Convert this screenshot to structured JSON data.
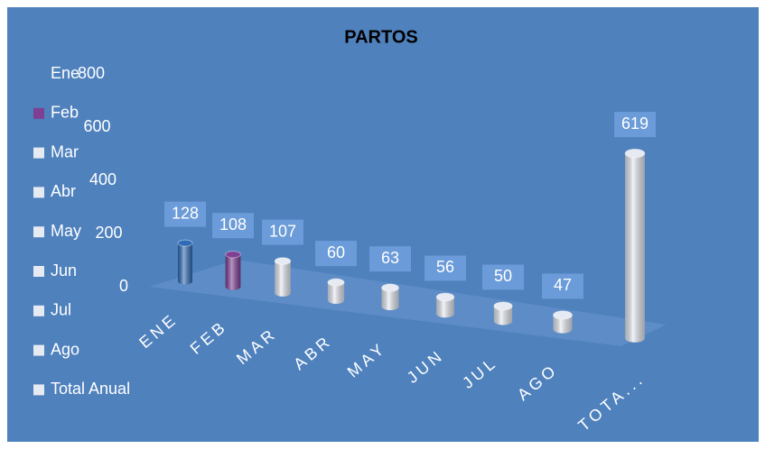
{
  "chart_data": {
    "type": "bar",
    "title": "PARTOS",
    "categories": [
      "ENE",
      "FEB",
      "MAR",
      "ABR",
      "MAY",
      "JUN",
      "JUL",
      "AGO",
      "TOTA..."
    ],
    "values": [
      128,
      108,
      107,
      60,
      63,
      56,
      50,
      47,
      619
    ],
    "colors": [
      "#2f6cb5",
      "#7e3f94",
      "#e6eaf2",
      "#e6eaf2",
      "#e6eaf2",
      "#e6eaf2",
      "#e6eaf2",
      "#e6eaf2",
      "#e6eaf2"
    ],
    "ylim": [
      0,
      800
    ],
    "yticks": [
      0,
      200,
      400,
      600,
      800
    ],
    "legend": {
      "names": [
        "Ene",
        "Feb",
        "Mar",
        "Abr",
        "May",
        "Jun",
        "Jul",
        "Ago",
        "Total Anual"
      ],
      "colors": [
        "#4f81bd",
        "#7e3f94",
        "#e6eaf2",
        "#e6eaf2",
        "#e6eaf2",
        "#e6eaf2",
        "#e6eaf2",
        "#e6eaf2",
        "#e6eaf2"
      ]
    }
  }
}
